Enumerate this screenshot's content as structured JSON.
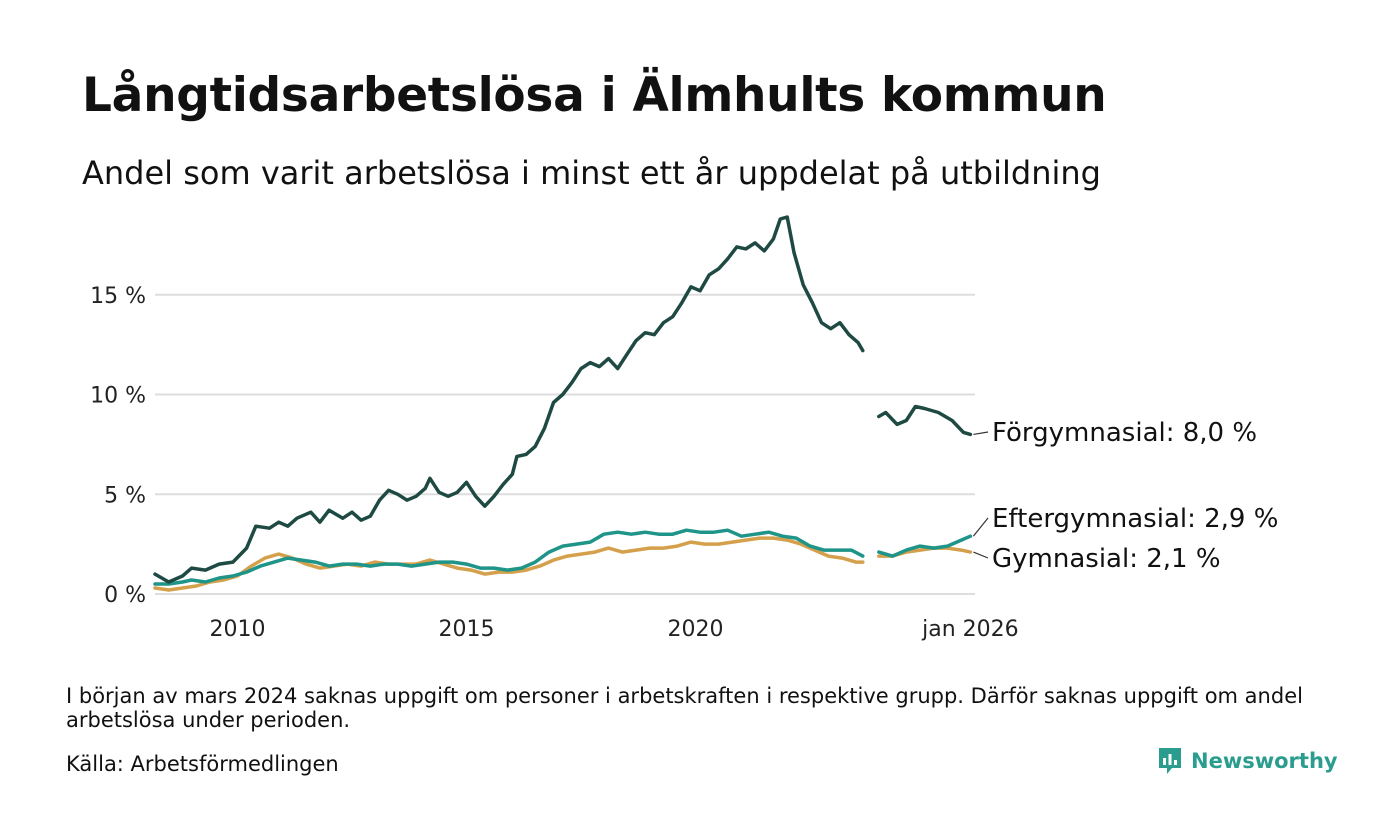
{
  "header": {
    "title": "Långtidsarbetslösa i Älmhults kommun",
    "subtitle": "Andel som varit arbetslösa i minst ett år uppdelat på utbildning"
  },
  "footer": {
    "note": "I början av mars 2024 saknas uppgift om personer i arbetskraften i respektive grupp. Därför saknas uppgift om andel arbetslösa under perioden.",
    "source": "Källa: Arbetsförmedlingen",
    "brand": "Newsworthy"
  },
  "colors": {
    "forgymnasial": "#1f4a43",
    "eftergymnasial": "#1f9488",
    "gymnasial": "#d4a04c",
    "grid": "#dddddd",
    "brand": "#2a9d8f"
  },
  "chart_data": {
    "type": "line",
    "title": "Långtidsarbetslösa i Älmhults kommun",
    "xlabel": "",
    "ylabel": "",
    "xlim": [
      2008.2,
      2026.1
    ],
    "ylim": [
      0,
      19
    ],
    "y_ticks": [
      0,
      5,
      10,
      15
    ],
    "y_tick_labels": [
      "0 %",
      "5 %",
      "10 %",
      "15 %"
    ],
    "x_ticks": [
      2010,
      2015,
      2020,
      2026.0
    ],
    "x_tick_labels": [
      "2010",
      "2015",
      "2020",
      "jan 2026"
    ],
    "gap": [
      2023.8,
      2024.15
    ],
    "series": [
      {
        "name": "Förgymnasial",
        "color_key": "forgymnasial",
        "end_label": "Förgymnasial: 8,0 %",
        "points": [
          [
            2008.2,
            1.0
          ],
          [
            2008.5,
            0.6
          ],
          [
            2008.8,
            0.9
          ],
          [
            2009.0,
            1.3
          ],
          [
            2009.3,
            1.2
          ],
          [
            2009.6,
            1.5
          ],
          [
            2009.9,
            1.6
          ],
          [
            2010.2,
            2.3
          ],
          [
            2010.4,
            3.4
          ],
          [
            2010.7,
            3.3
          ],
          [
            2010.9,
            3.6
          ],
          [
            2011.1,
            3.4
          ],
          [
            2011.3,
            3.8
          ],
          [
            2011.6,
            4.1
          ],
          [
            2011.8,
            3.6
          ],
          [
            2012.0,
            4.2
          ],
          [
            2012.3,
            3.8
          ],
          [
            2012.5,
            4.1
          ],
          [
            2012.7,
            3.7
          ],
          [
            2012.9,
            3.9
          ],
          [
            2013.1,
            4.7
          ],
          [
            2013.3,
            5.2
          ],
          [
            2013.5,
            5.0
          ],
          [
            2013.7,
            4.7
          ],
          [
            2013.9,
            4.9
          ],
          [
            2014.1,
            5.3
          ],
          [
            2014.2,
            5.8
          ],
          [
            2014.4,
            5.1
          ],
          [
            2014.6,
            4.9
          ],
          [
            2014.8,
            5.1
          ],
          [
            2015.0,
            5.6
          ],
          [
            2015.2,
            4.9
          ],
          [
            2015.4,
            4.4
          ],
          [
            2015.6,
            4.9
          ],
          [
            2015.8,
            5.5
          ],
          [
            2016.0,
            6.0
          ],
          [
            2016.1,
            6.9
          ],
          [
            2016.3,
            7.0
          ],
          [
            2016.5,
            7.4
          ],
          [
            2016.7,
            8.3
          ],
          [
            2016.9,
            9.6
          ],
          [
            2017.1,
            10.0
          ],
          [
            2017.3,
            10.6
          ],
          [
            2017.5,
            11.3
          ],
          [
            2017.7,
            11.6
          ],
          [
            2017.9,
            11.4
          ],
          [
            2018.1,
            11.8
          ],
          [
            2018.3,
            11.3
          ],
          [
            2018.5,
            12.0
          ],
          [
            2018.7,
            12.7
          ],
          [
            2018.9,
            13.1
          ],
          [
            2019.1,
            13.0
          ],
          [
            2019.3,
            13.6
          ],
          [
            2019.5,
            13.9
          ],
          [
            2019.7,
            14.6
          ],
          [
            2019.9,
            15.4
          ],
          [
            2020.1,
            15.2
          ],
          [
            2020.3,
            16.0
          ],
          [
            2020.5,
            16.3
          ],
          [
            2020.7,
            16.8
          ],
          [
            2020.9,
            17.4
          ],
          [
            2021.1,
            17.3
          ],
          [
            2021.3,
            17.6
          ],
          [
            2021.5,
            17.2
          ],
          [
            2021.7,
            17.8
          ],
          [
            2021.85,
            18.8
          ],
          [
            2022.0,
            18.9
          ],
          [
            2022.15,
            17.1
          ],
          [
            2022.35,
            15.5
          ],
          [
            2022.55,
            14.6
          ],
          [
            2022.75,
            13.6
          ],
          [
            2022.95,
            13.3
          ],
          [
            2023.15,
            13.6
          ],
          [
            2023.35,
            13.0
          ],
          [
            2023.55,
            12.6
          ],
          [
            2023.65,
            12.2
          ],
          null,
          [
            2024.0,
            8.9
          ],
          [
            2024.15,
            9.1
          ],
          [
            2024.4,
            8.5
          ],
          [
            2024.6,
            8.7
          ],
          [
            2024.8,
            9.4
          ],
          [
            2025.0,
            9.3
          ],
          [
            2025.3,
            9.1
          ],
          [
            2025.6,
            8.7
          ],
          [
            2025.85,
            8.1
          ],
          [
            2026.0,
            8.0
          ]
        ]
      },
      {
        "name": "Eftergymnasial",
        "color_key": "eftergymnasial",
        "end_label": "Eftergymnasial: 2,9 %",
        "points": [
          [
            2008.2,
            0.5
          ],
          [
            2008.5,
            0.5
          ],
          [
            2008.8,
            0.6
          ],
          [
            2009.0,
            0.7
          ],
          [
            2009.3,
            0.6
          ],
          [
            2009.6,
            0.8
          ],
          [
            2009.9,
            0.9
          ],
          [
            2010.2,
            1.1
          ],
          [
            2010.5,
            1.4
          ],
          [
            2010.8,
            1.6
          ],
          [
            2011.1,
            1.8
          ],
          [
            2011.4,
            1.7
          ],
          [
            2011.7,
            1.6
          ],
          [
            2012.0,
            1.4
          ],
          [
            2012.3,
            1.5
          ],
          [
            2012.6,
            1.5
          ],
          [
            2012.9,
            1.4
          ],
          [
            2013.2,
            1.5
          ],
          [
            2013.5,
            1.5
          ],
          [
            2013.8,
            1.4
          ],
          [
            2014.1,
            1.5
          ],
          [
            2014.4,
            1.6
          ],
          [
            2014.7,
            1.6
          ],
          [
            2015.0,
            1.5
          ],
          [
            2015.3,
            1.3
          ],
          [
            2015.6,
            1.3
          ],
          [
            2015.9,
            1.2
          ],
          [
            2016.2,
            1.3
          ],
          [
            2016.5,
            1.6
          ],
          [
            2016.8,
            2.1
          ],
          [
            2017.1,
            2.4
          ],
          [
            2017.4,
            2.5
          ],
          [
            2017.7,
            2.6
          ],
          [
            2018.0,
            3.0
          ],
          [
            2018.3,
            3.1
          ],
          [
            2018.6,
            3.0
          ],
          [
            2018.9,
            3.1
          ],
          [
            2019.2,
            3.0
          ],
          [
            2019.5,
            3.0
          ],
          [
            2019.8,
            3.2
          ],
          [
            2020.1,
            3.1
          ],
          [
            2020.4,
            3.1
          ],
          [
            2020.7,
            3.2
          ],
          [
            2021.0,
            2.9
          ],
          [
            2021.3,
            3.0
          ],
          [
            2021.6,
            3.1
          ],
          [
            2021.9,
            2.9
          ],
          [
            2022.2,
            2.8
          ],
          [
            2022.5,
            2.4
          ],
          [
            2022.8,
            2.2
          ],
          [
            2023.1,
            2.2
          ],
          [
            2023.4,
            2.2
          ],
          [
            2023.65,
            1.9
          ],
          null,
          [
            2024.0,
            2.1
          ],
          [
            2024.3,
            1.9
          ],
          [
            2024.6,
            2.2
          ],
          [
            2024.9,
            2.4
          ],
          [
            2025.2,
            2.3
          ],
          [
            2025.5,
            2.4
          ],
          [
            2025.8,
            2.7
          ],
          [
            2026.0,
            2.9
          ]
        ]
      },
      {
        "name": "Gymnasial",
        "color_key": "gymnasial",
        "end_label": "Gymnasial: 2,1 %",
        "points": [
          [
            2008.2,
            0.3
          ],
          [
            2008.5,
            0.2
          ],
          [
            2008.8,
            0.3
          ],
          [
            2009.1,
            0.4
          ],
          [
            2009.4,
            0.6
          ],
          [
            2009.7,
            0.7
          ],
          [
            2010.0,
            0.9
          ],
          [
            2010.3,
            1.4
          ],
          [
            2010.6,
            1.8
          ],
          [
            2010.9,
            2.0
          ],
          [
            2011.2,
            1.8
          ],
          [
            2011.5,
            1.5
          ],
          [
            2011.8,
            1.3
          ],
          [
            2012.1,
            1.4
          ],
          [
            2012.4,
            1.5
          ],
          [
            2012.7,
            1.4
          ],
          [
            2013.0,
            1.6
          ],
          [
            2013.3,
            1.5
          ],
          [
            2013.6,
            1.5
          ],
          [
            2013.9,
            1.5
          ],
          [
            2014.2,
            1.7
          ],
          [
            2014.5,
            1.5
          ],
          [
            2014.8,
            1.3
          ],
          [
            2015.1,
            1.2
          ],
          [
            2015.4,
            1.0
          ],
          [
            2015.7,
            1.1
          ],
          [
            2016.0,
            1.1
          ],
          [
            2016.3,
            1.2
          ],
          [
            2016.6,
            1.4
          ],
          [
            2016.9,
            1.7
          ],
          [
            2017.2,
            1.9
          ],
          [
            2017.5,
            2.0
          ],
          [
            2017.8,
            2.1
          ],
          [
            2018.1,
            2.3
          ],
          [
            2018.4,
            2.1
          ],
          [
            2018.7,
            2.2
          ],
          [
            2019.0,
            2.3
          ],
          [
            2019.3,
            2.3
          ],
          [
            2019.6,
            2.4
          ],
          [
            2019.9,
            2.6
          ],
          [
            2020.2,
            2.5
          ],
          [
            2020.5,
            2.5
          ],
          [
            2020.8,
            2.6
          ],
          [
            2021.1,
            2.7
          ],
          [
            2021.4,
            2.8
          ],
          [
            2021.7,
            2.8
          ],
          [
            2022.0,
            2.7
          ],
          [
            2022.3,
            2.5
          ],
          [
            2022.6,
            2.2
          ],
          [
            2022.9,
            1.9
          ],
          [
            2023.2,
            1.8
          ],
          [
            2023.5,
            1.6
          ],
          [
            2023.65,
            1.6
          ],
          null,
          [
            2024.0,
            1.9
          ],
          [
            2024.3,
            1.9
          ],
          [
            2024.6,
            2.1
          ],
          [
            2024.9,
            2.2
          ],
          [
            2025.2,
            2.3
          ],
          [
            2025.5,
            2.3
          ],
          [
            2025.8,
            2.2
          ],
          [
            2026.0,
            2.1
          ]
        ]
      }
    ]
  }
}
